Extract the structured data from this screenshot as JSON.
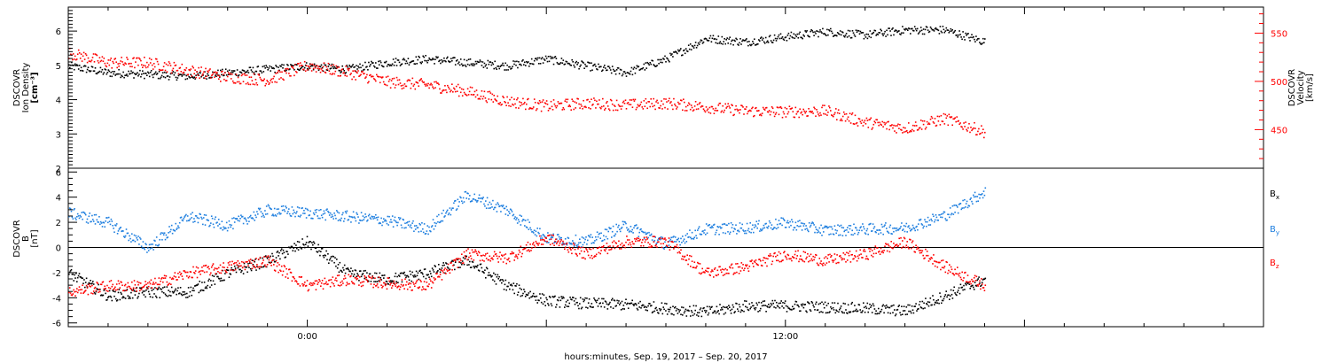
{
  "xaxis": {
    "title": "hours:minutes, Sep. 19, 2017 – Sep. 20, 2017",
    "tick_labels": [
      {
        "label": "0:00",
        "hour": 0
      },
      {
        "label": "12:00",
        "hour": 12
      }
    ],
    "range_hours": [
      -6,
      24
    ]
  },
  "chart_data": [
    {
      "type": "scatter",
      "ylabel_left": [
        "DSCOVR",
        "Ion Density",
        "[cm⁻³]"
      ],
      "ylabel_right": [
        "DSCOVR",
        "Velocity",
        "[km/s]"
      ],
      "ylim_left": [
        2,
        6.7
      ],
      "ylim_right": [
        410,
        577
      ],
      "yticks_left": [
        "2",
        "3",
        "4",
        "5",
        "6"
      ],
      "yticks_right": [
        "450",
        "500",
        "550"
      ],
      "grid": false,
      "series": [
        {
          "axis": "left",
          "color": "#000000",
          "points": [
            [
              -6,
              5.0
            ],
            [
              -5,
              4.8
            ],
            [
              -4,
              4.75
            ],
            [
              -3,
              4.7
            ],
            [
              -2,
              4.8
            ],
            [
              -1,
              4.9
            ],
            [
              0,
              5.0
            ],
            [
              1,
              4.9
            ],
            [
              2,
              5.1
            ],
            [
              3,
              5.2
            ],
            [
              4,
              5.1
            ],
            [
              5,
              5.0
            ],
            [
              6,
              5.2
            ],
            [
              7,
              5.0
            ],
            [
              8,
              4.8
            ],
            [
              9,
              5.2
            ],
            [
              10,
              5.8
            ],
            [
              11,
              5.7
            ],
            [
              12,
              5.85
            ],
            [
              13,
              6.0
            ],
            [
              14,
              5.9
            ],
            [
              15,
              6.05
            ],
            [
              16,
              6.05
            ],
            [
              17,
              5.7
            ]
          ]
        },
        {
          "axis": "right",
          "color": "#ff0000",
          "points": [
            [
              -6,
              530
            ],
            [
              -5,
              520
            ],
            [
              -4,
              520
            ],
            [
              -3,
              512
            ],
            [
              -2,
              505
            ],
            [
              -1,
              502
            ],
            [
              0,
              517
            ],
            [
              1,
              510
            ],
            [
              2,
              500
            ],
            [
              3,
              497
            ],
            [
              4,
              490
            ],
            [
              5,
              480
            ],
            [
              6,
              475
            ],
            [
              7,
              478
            ],
            [
              8,
              476
            ],
            [
              9,
              478
            ],
            [
              10,
              474
            ],
            [
              11,
              470
            ],
            [
              12,
              469
            ],
            [
              13,
              470
            ],
            [
              14,
              458
            ],
            [
              15,
              452
            ],
            [
              16,
              462
            ],
            [
              17,
              448
            ]
          ]
        }
      ]
    },
    {
      "type": "scatter",
      "ylabel_left": [
        "DSCOVR",
        "B",
        "[nT]"
      ],
      "ylim": [
        -6.3,
        6.3
      ],
      "yticks": [
        "-6",
        "-4",
        "-2",
        "0",
        "2",
        "4",
        "6"
      ],
      "zero_line": true,
      "grid": false,
      "series": [
        {
          "name": "B",
          "sub": "x",
          "color": "#000000",
          "points": [
            [
              -6,
              -2.0
            ],
            [
              -5,
              -3.8
            ],
            [
              -4,
              -3.5
            ],
            [
              -3,
              -3.5
            ],
            [
              -2,
              -2.0
            ],
            [
              -1,
              -1.0
            ],
            [
              0,
              0.5
            ],
            [
              1,
              -2.0
            ],
            [
              2,
              -2.5
            ],
            [
              3,
              -2.0
            ],
            [
              4,
              -1.0
            ],
            [
              5,
              -3.0
            ],
            [
              6,
              -4.2
            ],
            [
              7,
              -4.4
            ],
            [
              8,
              -4.5
            ],
            [
              9,
              -4.8
            ],
            [
              10,
              -5.1
            ],
            [
              11,
              -4.6
            ],
            [
              12,
              -4.6
            ],
            [
              13,
              -4.7
            ],
            [
              14,
              -4.8
            ],
            [
              15,
              -5.0
            ],
            [
              16,
              -3.8
            ],
            [
              17,
              -2.5
            ]
          ]
        },
        {
          "name": "B",
          "sub": "y",
          "color": "#1f7fdf",
          "points": [
            [
              -6,
              2.8
            ],
            [
              -5,
              2.0
            ],
            [
              -4,
              0.0
            ],
            [
              -3,
              2.5
            ],
            [
              -2,
              1.8
            ],
            [
              -1,
              3.0
            ],
            [
              0,
              2.8
            ],
            [
              1,
              2.5
            ],
            [
              2,
              2.2
            ],
            [
              3,
              1.5
            ],
            [
              4,
              4.2
            ],
            [
              5,
              3.0
            ],
            [
              6,
              0.8
            ],
            [
              7,
              0.5
            ],
            [
              8,
              1.8
            ],
            [
              9,
              0.3
            ],
            [
              10,
              1.5
            ],
            [
              11,
              1.6
            ],
            [
              12,
              2.0
            ],
            [
              13,
              1.4
            ],
            [
              14,
              1.5
            ],
            [
              15,
              1.6
            ],
            [
              16,
              2.6
            ],
            [
              17,
              4.5
            ]
          ]
        },
        {
          "name": "B",
          "sub": "z",
          "color": "#ff0000",
          "points": [
            [
              -6,
              -3.5
            ],
            [
              -5,
              -3.0
            ],
            [
              -4,
              -3.0
            ],
            [
              -3,
              -2.0
            ],
            [
              -2,
              -1.5
            ],
            [
              -1,
              -1.0
            ],
            [
              0,
              -3.0
            ],
            [
              1,
              -2.5
            ],
            [
              2,
              -2.8
            ],
            [
              3,
              -3.0
            ],
            [
              4,
              -0.5
            ],
            [
              5,
              -0.8
            ],
            [
              6,
              0.8
            ],
            [
              7,
              -0.5
            ],
            [
              8,
              0.5
            ],
            [
              9,
              0.5
            ],
            [
              10,
              -2.0
            ],
            [
              11,
              -1.5
            ],
            [
              12,
              -0.5
            ],
            [
              13,
              -1.0
            ],
            [
              14,
              -0.5
            ],
            [
              15,
              0.5
            ],
            [
              16,
              -1.5
            ],
            [
              17,
              -3.0
            ]
          ]
        }
      ]
    }
  ]
}
